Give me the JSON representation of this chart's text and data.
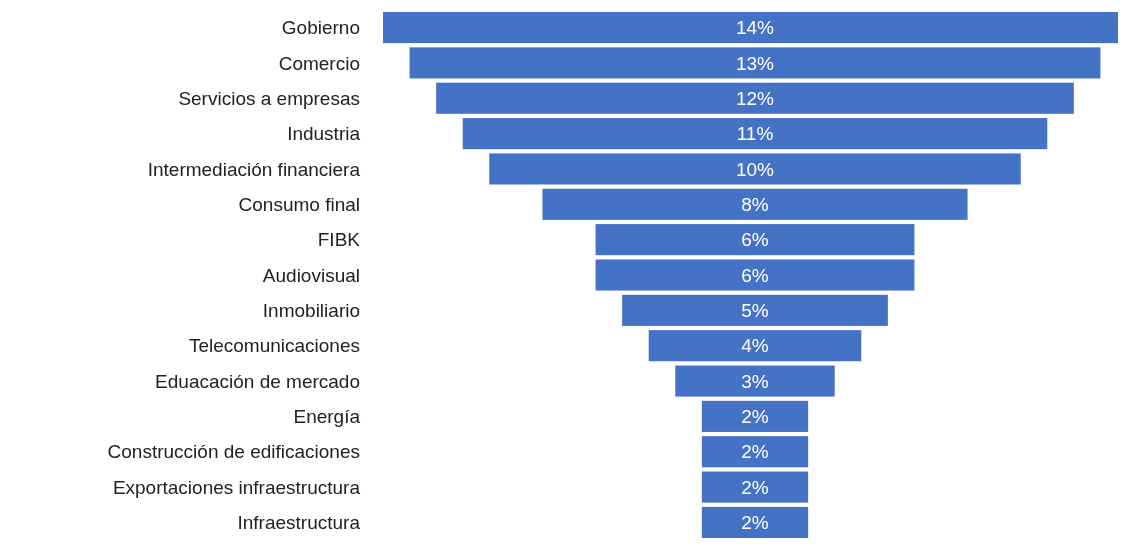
{
  "chart_data": {
    "type": "other",
    "categories": [
      "Gobierno",
      "Comercio",
      "Servicios a empresas",
      "Industria",
      "Intermediación financiera",
      "Consumo final",
      "FIBK",
      "Audiovisual",
      "Inmobiliario",
      "Telecomunicaciones",
      "Eduacación de mercado",
      "Energía",
      "Construcción de edificaciones",
      "Exportaciones infraestructura",
      "Infraestructura"
    ],
    "values": [
      14,
      13,
      12,
      11,
      10,
      8,
      6,
      6,
      5,
      4,
      3,
      2,
      2,
      2,
      2
    ],
    "value_labels": [
      "14%",
      "13%",
      "12%",
      "11%",
      "10%",
      "8%",
      "6%",
      "6%",
      "5%",
      "4%",
      "3%",
      "2%",
      "2%",
      "2%",
      "2%"
    ],
    "color": "#4472c4"
  }
}
